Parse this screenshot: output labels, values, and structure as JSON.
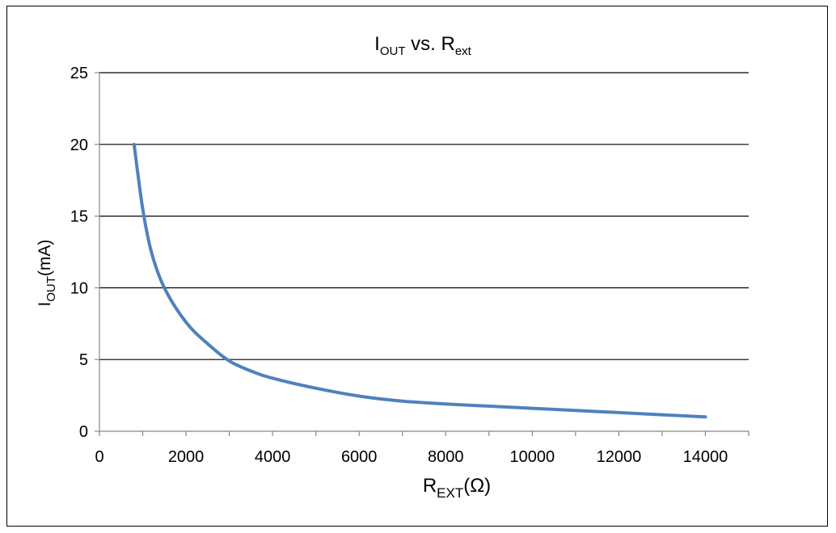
{
  "chart_data": {
    "type": "line",
    "title": {
      "main": "I",
      "sub": "OUT",
      "middle": " vs. R",
      "sub2": "ext"
    },
    "xlabel": {
      "main": "R",
      "sub": "EXT",
      "suffix": "(Ω)"
    },
    "ylabel": {
      "main": "I",
      "sub": "OUT",
      "suffix": "(mA)"
    },
    "xlim": [
      0,
      15000
    ],
    "ylim": [
      0,
      25
    ],
    "x_ticks": [
      0,
      2000,
      4000,
      6000,
      8000,
      10000,
      12000,
      14000
    ],
    "y_ticks": [
      0,
      5,
      10,
      15,
      20,
      25
    ],
    "grid": "horizontal",
    "series": [
      {
        "color": "#4f81bd",
        "x": [
          800,
          1000,
          1200,
          1500,
          2000,
          2500,
          3000,
          3500,
          4000,
          5000,
          6000,
          7000,
          8000,
          9000,
          10000,
          11000,
          12000,
          13000,
          14000
        ],
        "y": [
          20,
          15.5,
          12.5,
          10,
          7.6,
          6.1,
          4.9,
          4.2,
          3.7,
          3.0,
          2.45,
          2.1,
          1.9,
          1.75,
          1.6,
          1.45,
          1.3,
          1.15,
          1.0
        ]
      }
    ]
  }
}
